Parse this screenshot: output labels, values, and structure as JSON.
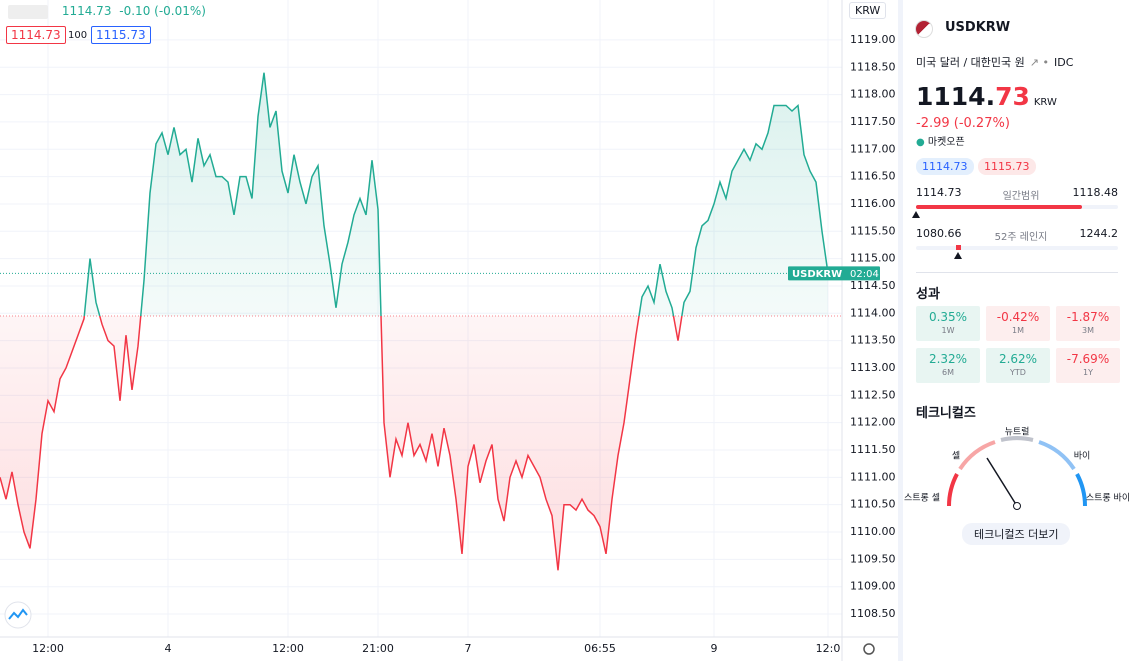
{
  "chart_data": {
    "type": "line",
    "baseline": 1113.95,
    "categories": [
      null,
      null,
      null,
      null,
      null,
      null,
      null,
      null,
      "12:00",
      null,
      null,
      null,
      null,
      null,
      null,
      null,
      null,
      null,
      null,
      null,
      null,
      null,
      null,
      null,
      null,
      null,
      null,
      null,
      "4",
      null,
      null,
      null,
      null,
      null,
      null,
      null,
      null,
      null,
      null,
      null,
      null,
      null,
      null,
      null,
      null,
      null,
      null,
      null,
      "12:00",
      null,
      null,
      null,
      null,
      null,
      null,
      null,
      null,
      null,
      null,
      null,
      null,
      null,
      null,
      "21:00",
      null,
      null,
      null,
      null,
      null,
      null,
      null,
      null,
      null,
      null,
      null,
      null,
      null,
      null,
      "7",
      null,
      null,
      null,
      null,
      null,
      null,
      null,
      null,
      null,
      null,
      null,
      null,
      null,
      null,
      null,
      null,
      null,
      null,
      null,
      null,
      null,
      "06:55",
      null,
      null,
      null,
      null,
      null,
      null,
      null,
      null,
      null,
      null,
      null,
      null,
      null,
      null,
      null,
      null,
      null,
      null,
      "9",
      null,
      null,
      null,
      null,
      null,
      null,
      null,
      null,
      null,
      null,
      null,
      null,
      null,
      null,
      null,
      null,
      null,
      null,
      "12:0"
    ],
    "series": [
      {
        "name": "USDKRW",
        "color_above": "#22ab94",
        "color_below": "#f23645",
        "values": [
          1111.0,
          1110.6,
          1111.1,
          1110.5,
          1110.0,
          1109.7,
          1110.6,
          1111.8,
          1112.4,
          1112.2,
          1112.8,
          1113.0,
          1113.3,
          1113.6,
          1113.9,
          1115.0,
          1114.2,
          1113.8,
          1113.5,
          1113.4,
          1112.4,
          1113.6,
          1112.6,
          1113.4,
          1114.6,
          1116.2,
          1117.1,
          1117.3,
          1116.9,
          1117.4,
          1116.9,
          1117.0,
          1116.4,
          1117.2,
          1116.7,
          1116.9,
          1116.5,
          1116.5,
          1116.4,
          1115.8,
          1116.5,
          1116.5,
          1116.1,
          1117.6,
          1118.4,
          1117.4,
          1117.7,
          1116.6,
          1116.2,
          1116.9,
          1116.4,
          1116.0,
          1116.5,
          1116.7,
          1115.6,
          1114.9,
          1114.1,
          1114.9,
          1115.3,
          1115.8,
          1116.1,
          1115.8,
          1116.8,
          1115.9,
          1112.0,
          1111.0,
          1111.7,
          1111.4,
          1112.0,
          1111.4,
          1111.6,
          1111.3,
          1111.8,
          1111.2,
          1111.9,
          1111.4,
          1110.6,
          1109.6,
          1111.2,
          1111.6,
          1110.9,
          1111.3,
          1111.6,
          1110.6,
          1110.2,
          1111.0,
          1111.3,
          1111.0,
          1111.4,
          1111.2,
          1111.0,
          1110.6,
          1110.3,
          1109.3,
          1110.5,
          1110.5,
          1110.4,
          1110.6,
          1110.4,
          1110.3,
          1110.1,
          1109.6,
          1110.6,
          1111.4,
          1112.0,
          1112.8,
          1113.6,
          1114.3,
          1114.5,
          1114.2,
          1114.9,
          1114.4,
          1114.1,
          1113.5,
          1114.2,
          1114.4,
          1115.2,
          1115.6,
          1115.7,
          1116.0,
          1116.4,
          1116.1,
          1116.6,
          1116.8,
          1117.0,
          1116.8,
          1117.1,
          1117.0,
          1117.3,
          1117.8,
          1117.8,
          1117.8,
          1117.7,
          1117.8,
          1116.9,
          1116.6,
          1116.4,
          1115.5,
          1114.73
        ]
      }
    ],
    "ylim": [
      1108.08,
      1119.73
    ],
    "yticks": [
      {
        "value": 1108.5,
        "label": "1108.50"
      },
      {
        "value": 1109,
        "label": "1109.00"
      },
      {
        "value": 1109.5,
        "label": "1109.50"
      },
      {
        "value": 1110,
        "label": "1110.00"
      },
      {
        "value": 1110.5,
        "label": "1110.50"
      },
      {
        "value": 1111,
        "label": "1111.00"
      },
      {
        "value": 1111.5,
        "label": "1111.50"
      },
      {
        "value": 1112,
        "label": "1112.00"
      },
      {
        "value": 1112.5,
        "label": "1112.50"
      },
      {
        "value": 1113,
        "label": "1113.00"
      },
      {
        "value": 1113.5,
        "label": "1113.50"
      },
      {
        "value": 1114,
        "label": "1114.00"
      },
      {
        "value": 1114.5,
        "label": "1114.50"
      },
      {
        "value": 1115,
        "label": "1115.00"
      },
      {
        "value": 1115.5,
        "label": "1115.50"
      },
      {
        "value": 1116,
        "label": "1116.00"
      },
      {
        "value": 1116.5,
        "label": "1116.50"
      },
      {
        "value": 1117,
        "label": "1117.00"
      },
      {
        "value": 1117.5,
        "label": "1117.50"
      },
      {
        "value": 1118,
        "label": "1118.00"
      },
      {
        "value": 1118.5,
        "label": "1118.50"
      },
      {
        "value": 1119,
        "label": "1119.00"
      }
    ],
    "grid": true,
    "legend": {
      "price": "1114.73",
      "change": "-0.10 (-0.01%)",
      "bid": "1114.73",
      "spread": "100",
      "ask": "1115.73"
    },
    "currency_button": "KRW",
    "price_tag_time": "02:04"
  },
  "panel": {
    "symbol": "USDKRW",
    "description": "미국 달러 / 대한민국 원",
    "source": "IDC",
    "price_int": "1114.",
    "price_dec": "73",
    "currency": "KRW",
    "change": "-2.99 (-0.27%)",
    "status": "마켓오픈",
    "bid": "1114.73",
    "ask": "1115.73",
    "day_range": {
      "low": 1114.73,
      "label": "일간범위",
      "high": 1118.48,
      "current": 1114.73
    },
    "year_range": {
      "low": 1080.66,
      "label": "52주 레인지",
      "high": 1244.2,
      "current": 1114.73
    },
    "performance_title": "성과",
    "performance": [
      {
        "value": "0.35%",
        "period": "1W"
      },
      {
        "value": "-0.42%",
        "period": "1M"
      },
      {
        "value": "-1.87%",
        "period": "3M"
      },
      {
        "value": "2.32%",
        "period": "6M"
      },
      {
        "value": "2.62%",
        "period": "YTD"
      },
      {
        "value": "-7.69%",
        "period": "1Y"
      }
    ],
    "technicals_title": "테크니컬즈",
    "gauge_labels": [
      "스트롱 셀",
      "셀",
      "뉴트럴",
      "바이",
      "스트롱 바이"
    ],
    "technicals_button": "테크니컬즈 더보기"
  }
}
